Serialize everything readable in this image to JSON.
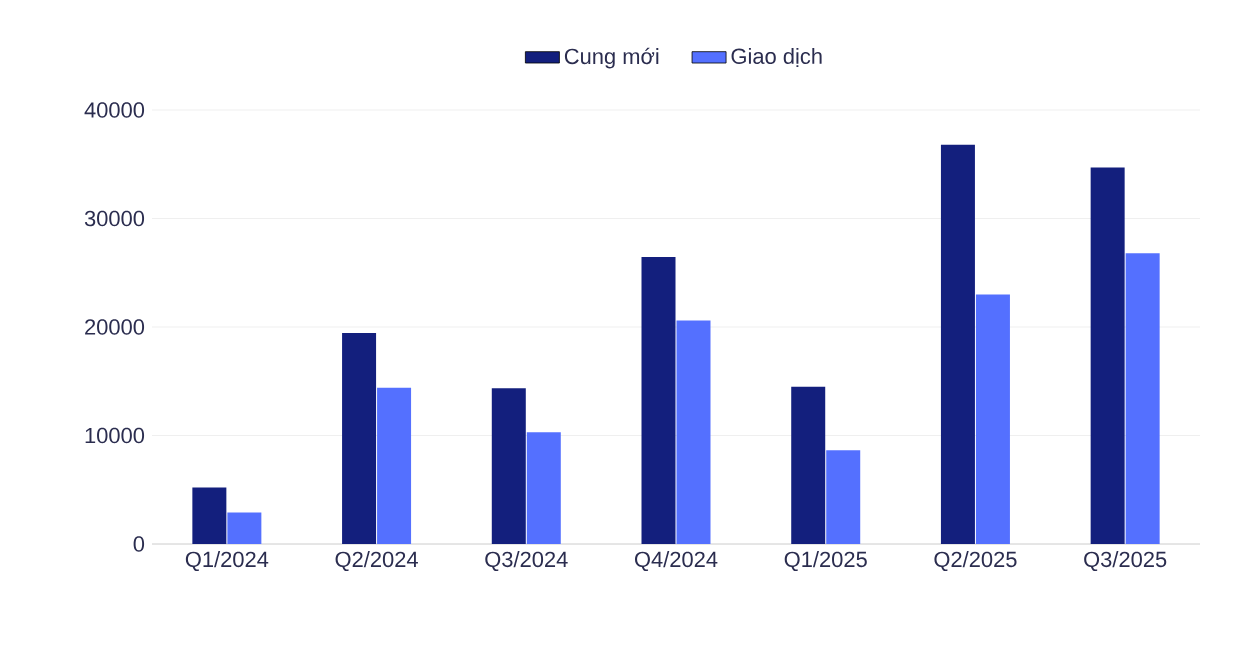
{
  "chart_data": {
    "type": "bar",
    "categories": [
      "Q1/2024",
      "Q2/2024",
      "Q3/2024",
      "Q4/2024",
      "Q1/2025",
      "Q2/2025",
      "Q3/2025"
    ],
    "series": [
      {
        "name": "Cung mới",
        "color": "#131f7d",
        "values": [
          5200,
          19450,
          14350,
          26450,
          14500,
          36800,
          34700
        ]
      },
      {
        "name": "Giao dịch",
        "color": "#5470ff",
        "values": [
          2900,
          14400,
          10300,
          20600,
          8650,
          23000,
          26800
        ]
      }
    ],
    "ylim": [
      0,
      40000
    ],
    "yticks": [
      0,
      10000,
      20000,
      30000,
      40000
    ],
    "grid": "y",
    "legend": "top"
  }
}
